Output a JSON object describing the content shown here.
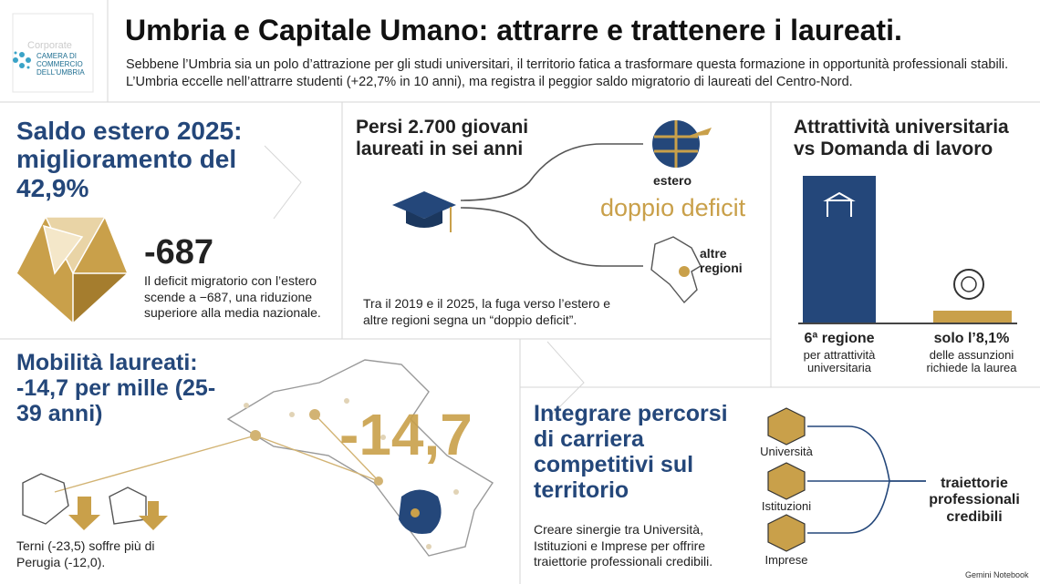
{
  "header": {
    "logo_faded": "Corporate",
    "logo": "CAMERA DI COMMERCIO DELL'UMBRIA",
    "title": "Umbria e Capitale Umano: attrarre e trattenere i laureati.",
    "subtitle": "Sebbene l’Umbria sia un polo d’attrazione per gli studi universitari, il territorio fatica a trasformare questa formazione in opportunità professionali stabili. L’Umbria eccelle nell’attrarre studenti (+22,7% in 10 anni), ma registra il peggior saldo migratorio di laureati del Centro-Nord."
  },
  "saldo": {
    "title": "Saldo estero 2025: miglioramento del 42,9%",
    "figure": "-687",
    "text": "Il deficit migratorio con l’estero scende a −687, una riduzione superiore alla media nazionale."
  },
  "persi": {
    "title": "Persi 2.700 giovani laureati in sei anni",
    "estero": "estero",
    "deficit": "doppio deficit",
    "regioni": "altre regioni",
    "text": "Tra il 2019 e il 2025, la fuga verso l’estero e altre regioni segna un “doppio deficit”."
  },
  "attrattivita": {
    "title": "Attrattività universitaria vs Domanda di lavoro",
    "left_head": "6ª regione",
    "left_text": "per attrattività universitaria",
    "right_head": "solo l’8,1%",
    "right_text": "delle assunzioni richiede la laurea"
  },
  "mobilita": {
    "title": "Mobilità laureati: -14,7 per mille (25-39 anni)",
    "figure": "-14,7",
    "text": "Terni (-23,5) soffre più di Perugia (-12,0)."
  },
  "integrare": {
    "title": "Integrare percorsi di carriera competitivi sul territorio",
    "text": "Creare sinergie tra Università, Istituzioni e Imprese per offrire traiettorie professionali credibili.",
    "nodes": [
      "Università",
      "Istituzioni",
      "Imprese"
    ],
    "result": "traiettorie professionali credibili"
  },
  "footer": "Gemini Notebook"
}
